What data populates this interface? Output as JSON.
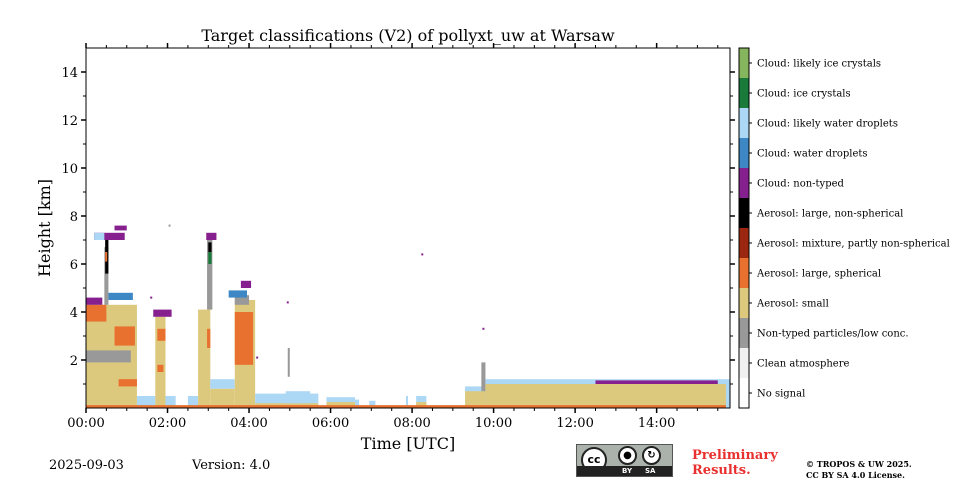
{
  "chart_data": {
    "type": "heatmap",
    "title": "Target classifications (V2) of pollyxt_uw at Warsaw",
    "xlabel": "Time [UTC]",
    "ylabel": "Height [km]",
    "xlim": [
      0,
      15.8
    ],
    "ylim": [
      0,
      15
    ],
    "x_ticks": [
      {
        "v": 0,
        "label": "00:00"
      },
      {
        "v": 2,
        "label": "02:00"
      },
      {
        "v": 4,
        "label": "04:00"
      },
      {
        "v": 6,
        "label": "06:00"
      },
      {
        "v": 8,
        "label": "08:00"
      },
      {
        "v": 10,
        "label": "10:00"
      },
      {
        "v": 12,
        "label": "12:00"
      },
      {
        "v": 14,
        "label": "14:00"
      }
    ],
    "y_ticks": [
      {
        "v": 2,
        "label": "2"
      },
      {
        "v": 4,
        "label": "4"
      },
      {
        "v": 6,
        "label": "6"
      },
      {
        "v": 8,
        "label": "8"
      },
      {
        "v": 10,
        "label": "10"
      },
      {
        "v": 12,
        "label": "12"
      },
      {
        "v": 14,
        "label": "14"
      }
    ],
    "legend": [
      {
        "id": 0,
        "label": "No signal",
        "color": "#ffffff"
      },
      {
        "id": 1,
        "label": "Clean atmosphere",
        "color": "#f0f0f0"
      },
      {
        "id": 2,
        "label": "Non-typed particles/low conc.",
        "color": "#999999"
      },
      {
        "id": 3,
        "label": "Aerosol: small",
        "color": "#ddc97d"
      },
      {
        "id": 4,
        "label": "Aerosol: large, spherical",
        "color": "#e8712f"
      },
      {
        "id": 5,
        "label": "Aerosol: mixture, partly non-spherical",
        "color": "#9b2710"
      },
      {
        "id": 6,
        "label": "Aerosol: large, non-spherical",
        "color": "#000000"
      },
      {
        "id": 7,
        "label": "Cloud: non-typed",
        "color": "#87208f"
      },
      {
        "id": 8,
        "label": "Cloud: water droplets",
        "color": "#3d87c4"
      },
      {
        "id": 9,
        "label": "Cloud: likely water droplets",
        "color": "#acd7f5"
      },
      {
        "id": 10,
        "label": "Cloud: ice crystals",
        "color": "#197a3a"
      },
      {
        "id": 11,
        "label": "Cloud: likely ice crystals",
        "color": "#85b55c"
      }
    ],
    "regions": [
      {
        "class": 3,
        "t0": 0.0,
        "t1": 1.25,
        "h0": 0.0,
        "h1": 4.3
      },
      {
        "class": 2,
        "t0": 0.0,
        "t1": 1.1,
        "h0": 1.9,
        "h1": 2.4
      },
      {
        "class": 4,
        "t0": 0.0,
        "t1": 0.5,
        "h0": 3.6,
        "h1": 4.3
      },
      {
        "class": 4,
        "t0": 0.7,
        "t1": 1.2,
        "h0": 2.6,
        "h1": 3.4
      },
      {
        "class": 4,
        "t0": 0.8,
        "t1": 1.25,
        "h0": 0.9,
        "h1": 1.2
      },
      {
        "class": 7,
        "t0": 0.0,
        "t1": 0.4,
        "h0": 4.3,
        "h1": 4.6
      },
      {
        "class": 8,
        "t0": 0.55,
        "t1": 1.15,
        "h0": 4.5,
        "h1": 4.8
      },
      {
        "class": 2,
        "t0": 0.45,
        "t1": 0.55,
        "h0": 4.3,
        "h1": 6.7
      },
      {
        "class": 6,
        "t0": 0.47,
        "t1": 0.55,
        "h0": 5.6,
        "h1": 7.0
      },
      {
        "class": 4,
        "t0": 0.47,
        "t1": 0.52,
        "h0": 6.1,
        "h1": 6.5
      },
      {
        "class": 7,
        "t0": 0.2,
        "t1": 0.95,
        "h0": 7.0,
        "h1": 7.3
      },
      {
        "class": 9,
        "t0": 0.2,
        "t1": 0.45,
        "h0": 7.0,
        "h1": 7.3
      },
      {
        "class": 7,
        "t0": 0.7,
        "t1": 1.0,
        "h0": 7.4,
        "h1": 7.6
      },
      {
        "class": 9,
        "t0": 1.25,
        "t1": 1.7,
        "h0": 0.1,
        "h1": 0.5
      },
      {
        "class": 3,
        "t0": 1.7,
        "t1": 1.95,
        "h0": 0.0,
        "h1": 3.8
      },
      {
        "class": 4,
        "t0": 1.75,
        "t1": 1.95,
        "h0": 2.8,
        "h1": 3.3
      },
      {
        "class": 4,
        "t0": 1.75,
        "t1": 1.9,
        "h0": 1.5,
        "h1": 1.8
      },
      {
        "class": 7,
        "t0": 1.65,
        "t1": 2.1,
        "h0": 3.8,
        "h1": 4.1
      },
      {
        "class": 9,
        "t0": 1.95,
        "t1": 2.2,
        "h0": 0.1,
        "h1": 0.5
      },
      {
        "class": 9,
        "t0": 2.5,
        "t1": 2.75,
        "h0": 0.1,
        "h1": 0.5
      },
      {
        "class": 3,
        "t0": 2.75,
        "t1": 3.05,
        "h0": 0.0,
        "h1": 4.1
      },
      {
        "class": 2,
        "t0": 2.97,
        "t1": 3.1,
        "h0": 4.1,
        "h1": 7.0
      },
      {
        "class": 10,
        "t0": 3.0,
        "t1": 3.08,
        "h0": 6.0,
        "h1": 6.5
      },
      {
        "class": 6,
        "t0": 3.0,
        "t1": 3.08,
        "h0": 6.5,
        "h1": 6.9
      },
      {
        "class": 7,
        "t0": 2.95,
        "t1": 3.2,
        "h0": 7.0,
        "h1": 7.3
      },
      {
        "class": 4,
        "t0": 2.97,
        "t1": 3.05,
        "h0": 2.5,
        "h1": 3.3
      },
      {
        "class": 9,
        "t0": 3.05,
        "t1": 3.65,
        "h0": 0.8,
        "h1": 1.2
      },
      {
        "class": 3,
        "t0": 3.05,
        "t1": 3.65,
        "h0": 0.0,
        "h1": 0.8
      },
      {
        "class": 3,
        "t0": 3.65,
        "t1": 4.15,
        "h0": 0.0,
        "h1": 4.5
      },
      {
        "class": 4,
        "t0": 3.65,
        "t1": 4.1,
        "h0": 1.8,
        "h1": 4.0
      },
      {
        "class": 2,
        "t0": 3.65,
        "t1": 4.0,
        "h0": 4.3,
        "h1": 4.7
      },
      {
        "class": 8,
        "t0": 3.5,
        "t1": 3.95,
        "h0": 4.6,
        "h1": 4.9
      },
      {
        "class": 7,
        "t0": 3.8,
        "t1": 4.05,
        "h0": 5.0,
        "h1": 5.3
      },
      {
        "class": 9,
        "t0": 4.15,
        "t1": 5.7,
        "h0": 0.0,
        "h1": 0.6
      },
      {
        "class": 3,
        "t0": 4.15,
        "t1": 5.7,
        "h0": 0.0,
        "h1": 0.2
      },
      {
        "class": 9,
        "t0": 4.9,
        "t1": 5.5,
        "h0": 0.2,
        "h1": 0.7
      },
      {
        "class": 2,
        "t0": 4.95,
        "t1": 5.0,
        "h0": 1.3,
        "h1": 2.5
      },
      {
        "class": 9,
        "t0": 5.9,
        "t1": 6.6,
        "h0": 0.0,
        "h1": 0.45
      },
      {
        "class": 3,
        "t0": 5.9,
        "t1": 6.6,
        "h0": 0.0,
        "h1": 0.25
      },
      {
        "class": 9,
        "t0": 6.6,
        "t1": 6.7,
        "h0": 0.0,
        "h1": 0.35
      },
      {
        "class": 9,
        "t0": 6.95,
        "t1": 7.1,
        "h0": 0.0,
        "h1": 0.3
      },
      {
        "class": 9,
        "t0": 7.85,
        "t1": 7.9,
        "h0": 0.0,
        "h1": 0.5
      },
      {
        "class": 9,
        "t0": 8.1,
        "t1": 8.35,
        "h0": 0.0,
        "h1": 0.5
      },
      {
        "class": 3,
        "t0": 8.1,
        "t1": 8.35,
        "h0": 0.0,
        "h1": 0.25
      },
      {
        "class": 9,
        "t0": 9.3,
        "t1": 9.8,
        "h0": 0.0,
        "h1": 0.9
      },
      {
        "class": 3,
        "t0": 9.3,
        "t1": 9.8,
        "h0": 0.0,
        "h1": 0.7
      },
      {
        "class": 2,
        "t0": 9.7,
        "t1": 9.8,
        "h0": 0.7,
        "h1": 1.9
      },
      {
        "class": 9,
        "t0": 9.8,
        "t1": 15.8,
        "h0": 0.0,
        "h1": 1.2
      },
      {
        "class": 3,
        "t0": 9.8,
        "t1": 15.7,
        "h0": 0.0,
        "h1": 1.0
      },
      {
        "class": 7,
        "t0": 12.5,
        "t1": 15.5,
        "h0": 1.0,
        "h1": 1.15
      },
      {
        "class": 4,
        "t0": 0.0,
        "t1": 15.7,
        "h0": 0.0,
        "h1": 0.12
      }
    ],
    "speckles": [
      {
        "class": 7,
        "t": 4.95,
        "h": 4.4
      },
      {
        "class": 7,
        "t": 8.25,
        "h": 6.4
      },
      {
        "class": 7,
        "t": 9.75,
        "h": 3.3
      },
      {
        "class": 2,
        "t": 2.05,
        "h": 7.6
      },
      {
        "class": 7,
        "t": 1.6,
        "h": 4.6
      },
      {
        "class": 7,
        "t": 4.2,
        "h": 2.1
      }
    ]
  },
  "footer": {
    "date": "2025-09-03",
    "version": "Version: 4.0",
    "preliminary": [
      "Preliminary",
      "Results."
    ],
    "copyright": [
      "© TROPOS & UW 2025.",
      "CC BY SA 4.0 License."
    ],
    "license_badge": {
      "cc": "cc",
      "by": "BY",
      "sa": "SA",
      "dark": "#222222",
      "gray": "#aab2ab"
    }
  },
  "colors": {
    "preliminary": "#e8312f"
  }
}
